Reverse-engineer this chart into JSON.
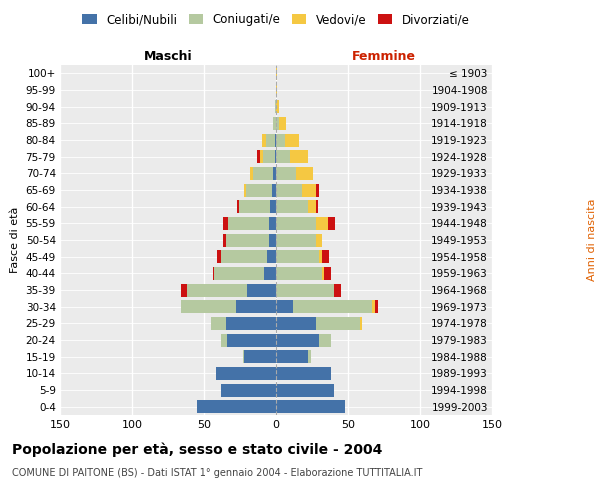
{
  "age_groups": [
    "0-4",
    "5-9",
    "10-14",
    "15-19",
    "20-24",
    "25-29",
    "30-34",
    "35-39",
    "40-44",
    "45-49",
    "50-54",
    "55-59",
    "60-64",
    "65-69",
    "70-74",
    "75-79",
    "80-84",
    "85-89",
    "90-94",
    "95-99",
    "100+"
  ],
  "birth_years": [
    "1999-2003",
    "1994-1998",
    "1989-1993",
    "1984-1988",
    "1979-1983",
    "1974-1978",
    "1969-1973",
    "1964-1968",
    "1959-1963",
    "1954-1958",
    "1949-1953",
    "1944-1948",
    "1939-1943",
    "1934-1938",
    "1929-1933",
    "1924-1928",
    "1919-1923",
    "1914-1918",
    "1909-1913",
    "1904-1908",
    "≤ 1903"
  ],
  "male_celibe": [
    55,
    38,
    42,
    22,
    34,
    35,
    28,
    20,
    8,
    6,
    5,
    5,
    4,
    3,
    2,
    1,
    1,
    0,
    0,
    0,
    0
  ],
  "male_coniugato": [
    0,
    0,
    0,
    1,
    4,
    10,
    38,
    42,
    35,
    32,
    30,
    28,
    22,
    18,
    14,
    8,
    6,
    2,
    1,
    0,
    0
  ],
  "male_vedovo": [
    0,
    0,
    0,
    0,
    0,
    0,
    0,
    0,
    0,
    0,
    0,
    0,
    0,
    1,
    2,
    2,
    3,
    0,
    0,
    0,
    0
  ],
  "male_divorziato": [
    0,
    0,
    0,
    0,
    0,
    0,
    0,
    4,
    1,
    3,
    2,
    4,
    1,
    0,
    0,
    2,
    0,
    0,
    0,
    0,
    0
  ],
  "female_nubile": [
    48,
    40,
    38,
    22,
    30,
    28,
    12,
    0,
    0,
    0,
    0,
    0,
    0,
    0,
    0,
    0,
    0,
    0,
    0,
    0,
    0
  ],
  "female_coniugata": [
    0,
    0,
    0,
    2,
    8,
    30,
    55,
    40,
    32,
    30,
    28,
    28,
    22,
    18,
    14,
    10,
    6,
    2,
    0,
    0,
    0
  ],
  "female_vedova": [
    0,
    0,
    0,
    0,
    0,
    2,
    2,
    0,
    1,
    2,
    4,
    8,
    6,
    10,
    12,
    12,
    10,
    5,
    2,
    1,
    1
  ],
  "female_divorziata": [
    0,
    0,
    0,
    0,
    0,
    0,
    2,
    5,
    5,
    5,
    0,
    5,
    1,
    2,
    0,
    0,
    0,
    0,
    0,
    0,
    0
  ],
  "color_celibe": "#4472a8",
  "color_coniugato": "#b5c9a0",
  "color_vedovo": "#f5c842",
  "color_divorziato": "#cc1111",
  "title": "Popolazione per età, sesso e stato civile - 2004",
  "subtitle": "COMUNE DI PAITONE (BS) - Dati ISTAT 1° gennaio 2004 - Elaborazione TUTTITALIA.IT",
  "label_maschi": "Maschi",
  "label_femmine": "Femmine",
  "ylabel_left": "Fasce di età",
  "ylabel_right": "Anni di nascita",
  "legend_labels": [
    "Celibi/Nubili",
    "Coniugati/e",
    "Vedovi/e",
    "Divorziati/e"
  ],
  "xlim": 150,
  "bg_color": "#ebebeb"
}
